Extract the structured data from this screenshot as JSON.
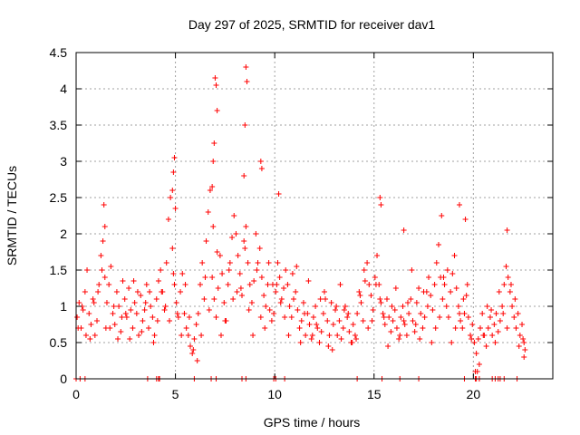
{
  "chart_data": {
    "type": "scatter",
    "title": "Day 297 of 2025, SRMTID for receiver dav1",
    "xlabel": "GPS time / hours",
    "ylabel": "SRMTID / TECUs",
    "xlim": [
      0,
      24
    ],
    "ylim": [
      0,
      4.5
    ],
    "xticks": [
      0,
      5,
      10,
      15,
      20
    ],
    "yticks": [
      0,
      0.5,
      1,
      1.5,
      2,
      2.5,
      3,
      3.5,
      4,
      4.5
    ],
    "ytick_labels": [
      "0",
      "0.5",
      "1",
      "1.5",
      "2",
      "2.5",
      "3",
      "3.5",
      "4",
      "4.5"
    ],
    "grid": true,
    "marker": "+",
    "color": "#ff0000",
    "series": [
      {
        "name": "SRMTID",
        "x": [
          0.05,
          0.15,
          0.25,
          0.35,
          0.45,
          0.55,
          0.65,
          0.75,
          0.85,
          0.95,
          1.05,
          1.15,
          1.25,
          1.35,
          1.45,
          1.55,
          1.65,
          1.75,
          1.85,
          1.95,
          2.05,
          2.15,
          2.25,
          2.35,
          2.45,
          2.55,
          2.65,
          2.75,
          2.85,
          2.95,
          3.05,
          3.15,
          3.25,
          3.35,
          3.45,
          3.55,
          3.65,
          3.75,
          3.85,
          3.95,
          4.05,
          4.15,
          4.25,
          4.35,
          4.45,
          4.55,
          4.65,
          4.75,
          4.85,
          4.95,
          5.05,
          5.15,
          5.25,
          5.35,
          5.45,
          5.55,
          5.65,
          5.75,
          5.85,
          5.95,
          6.05,
          6.15,
          6.25,
          6.35,
          6.45,
          6.55,
          6.65,
          6.75,
          6.85,
          6.95,
          7.05,
          7.15,
          7.25,
          7.35,
          7.45,
          7.55,
          7.65,
          7.75,
          7.85,
          7.95,
          8.05,
          8.15,
          8.25,
          8.35,
          8.45,
          8.55,
          8.65,
          8.75,
          8.85,
          8.95,
          9.05,
          9.15,
          9.25,
          9.35,
          9.45,
          9.55,
          9.65,
          9.75,
          9.85,
          9.95,
          10.05,
          10.15,
          10.25,
          10.35,
          10.45,
          10.55,
          10.65,
          10.75,
          10.85,
          10.95,
          11.05,
          11.15,
          11.25,
          11.35,
          11.45,
          11.55,
          11.65,
          11.75,
          11.85,
          11.95,
          12.05,
          12.15,
          12.25,
          12.35,
          12.45,
          12.55,
          12.65,
          12.75,
          12.85,
          12.95,
          13.05,
          13.15,
          13.25,
          13.35,
          13.45,
          13.55,
          13.65,
          13.75,
          13.85,
          13.95,
          14.05,
          14.15,
          14.25,
          14.35,
          14.45,
          14.55,
          14.65,
          14.75,
          14.85,
          14.95,
          15.05,
          15.15,
          15.25,
          15.35,
          15.45,
          15.55,
          15.65,
          15.75,
          15.85,
          15.95,
          16.05,
          16.15,
          16.25,
          16.35,
          16.45,
          16.55,
          16.65,
          16.75,
          16.85,
          16.95,
          17.05,
          17.15,
          17.25,
          17.35,
          17.45,
          17.55,
          17.65,
          17.75,
          17.85,
          17.95,
          18.05,
          18.15,
          18.25,
          18.35,
          18.45,
          18.55,
          18.65,
          18.75,
          18.85,
          18.95,
          19.05,
          19.15,
          19.25,
          19.35,
          19.45,
          19.55,
          19.65,
          19.75,
          19.85,
          19.95,
          20.05,
          20.15,
          20.25,
          20.35,
          20.45,
          20.55,
          20.65,
          20.75,
          20.85,
          20.95,
          21.05,
          21.15,
          21.25,
          21.35,
          21.45,
          21.55,
          21.65,
          21.75,
          21.85,
          21.95,
          22.05,
          22.15,
          22.25,
          22.35,
          22.45,
          22.55,
          0.1,
          0.5,
          0.9,
          1.3,
          1.7,
          2.1,
          2.5,
          2.9,
          3.3,
          3.7,
          4.1,
          4.5,
          4.9,
          5.3,
          5.7,
          6.1,
          6.5,
          6.9,
          7.3,
          7.7,
          8.1,
          8.5,
          8.9,
          9.3,
          9.7,
          10.1,
          10.5,
          10.9,
          11.3,
          11.7,
          12.1,
          12.5,
          12.9,
          13.3,
          13.7,
          14.1,
          14.5,
          14.9,
          15.3,
          15.7,
          16.1,
          16.5,
          16.9,
          17.3,
          17.7,
          18.1,
          18.5,
          18.9,
          19.3,
          19.7,
          20.1,
          20.5,
          20.9,
          21.3,
          21.7,
          22.1,
          22.5,
          0.3,
          0.7,
          1.1,
          1.5,
          1.9,
          2.3,
          2.7,
          3.1,
          3.5,
          3.9,
          4.3,
          4.7,
          5.1,
          5.5,
          5.9,
          6.3,
          6.7,
          7.1,
          7.5,
          7.9,
          8.3,
          8.7,
          9.1,
          9.5,
          9.9,
          10.3,
          10.7,
          11.1,
          11.5,
          11.9,
          12.3,
          12.7,
          13.1,
          13.5,
          13.9,
          14.3,
          14.7,
          15.1,
          15.5,
          15.9,
          16.3,
          16.7,
          17.1,
          17.5,
          17.9,
          18.3,
          18.7,
          19.1,
          19.5,
          19.9,
          20.3,
          20.7,
          21.1,
          21.5,
          21.9,
          22.3,
          1.4,
          1.45,
          4.85,
          4.9,
          4.95,
          5.0,
          6.85,
          6.9,
          6.95,
          7.0,
          7.05,
          7.1,
          8.45,
          8.5,
          8.55,
          8.6,
          9.3,
          9.35,
          10.2,
          15.3,
          15.35,
          16.5,
          18.4,
          19.3,
          19.6,
          20.2,
          21.7,
          22.55,
          22.6,
          0.0,
          0.2,
          0.45,
          3.6,
          4.05,
          4.15,
          4.2,
          5.95,
          6.8,
          7.05,
          8.35,
          8.55,
          9.95,
          10.05,
          10.5,
          14.15,
          15.4,
          16.3,
          17.25,
          19.55,
          20.1,
          20.15,
          20.3,
          20.95,
          21.1,
          21.25,
          21.35,
          21.55,
          22.2
        ],
        "y": [
          0.85,
          1.05,
          0.7,
          0.95,
          1.2,
          1.5,
          0.9,
          0.75,
          1.1,
          0.6,
          0.8,
          1.3,
          1.7,
          1.9,
          1.4,
          1.05,
          1.3,
          1.55,
          0.9,
          0.75,
          1.2,
          1.0,
          0.65,
          1.35,
          1.1,
          0.85,
          1.25,
          0.95,
          0.7,
          1.05,
          0.9,
          0.6,
          1.15,
          0.8,
          0.95,
          1.3,
          0.7,
          1.0,
          0.85,
          0.6,
          1.1,
          1.35,
          1.5,
          1.2,
          0.95,
          1.6,
          2.2,
          2.5,
          1.8,
          1.3,
          1.05,
          0.85,
          1.2,
          1.45,
          0.9,
          0.7,
          0.6,
          0.45,
          0.35,
          0.55,
          0.75,
          0.9,
          1.3,
          1.6,
          1.1,
          1.9,
          2.3,
          2.6,
          1.4,
          1.1,
          0.85,
          1.25,
          1.7,
          1.45,
          1.05,
          0.8,
          1.3,
          1.6,
          1.95,
          2.25,
          2.0,
          1.7,
          1.45,
          1.15,
          1.9,
          2.1,
          1.6,
          1.3,
          1.05,
          1.35,
          2.0,
          1.6,
          1.8,
          1.4,
          1.15,
          1.0,
          1.3,
          0.95,
          0.8,
          0.9,
          1.2,
          1.6,
          1.4,
          1.1,
          1.25,
          1.5,
          1.3,
          1.0,
          0.85,
          1.1,
          1.2,
          0.95,
          0.7,
          0.8,
          1.05,
          0.6,
          0.9,
          0.75,
          0.55,
          0.85,
          1.0,
          0.7,
          0.5,
          0.65,
          0.9,
          1.1,
          0.8,
          0.6,
          1.05,
          0.75,
          0.95,
          0.6,
          0.8,
          0.55,
          0.7,
          1.0,
          0.85,
          0.65,
          0.5,
          0.75,
          0.6,
          0.9,
          1.2,
          1.05,
          0.8,
          1.35,
          1.6,
          1.3,
          1.15,
          0.95,
          1.4,
          1.7,
          1.3,
          1.05,
          0.9,
          0.75,
          1.1,
          0.85,
          0.65,
          0.8,
          0.95,
          0.7,
          0.55,
          0.85,
          1.0,
          0.75,
          0.6,
          0.9,
          1.1,
          0.8,
          0.65,
          1.05,
          1.25,
          0.9,
          0.7,
          0.85,
          1.2,
          1.4,
          1.15,
          0.95,
          1.3,
          1.6,
          1.85,
          1.4,
          1.1,
          1.3,
          1.0,
          0.85,
          1.2,
          1.45,
          1.7,
          1.25,
          1.0,
          0.8,
          0.7,
          0.9,
          1.15,
          0.85,
          0.6,
          0.75,
          0.5,
          0.35,
          0.55,
          0.7,
          0.9,
          0.6,
          0.45,
          0.7,
          0.85,
          0.6,
          0.75,
          0.9,
          0.65,
          0.8,
          1.0,
          1.3,
          1.55,
          1.4,
          1.2,
          1.0,
          0.85,
          0.7,
          0.9,
          0.6,
          0.75,
          0.5,
          0.7,
          0.6,
          1.05,
          1.5,
          0.7,
          0.55,
          0.9,
          1.35,
          0.65,
          1.2,
          0.8,
          1.0,
          1.45,
          0.6,
          0.85,
          0.25,
          1.4,
          2.1,
          0.6,
          1.5,
          1.2,
          1.8,
          0.6,
          0.85,
          1.6,
          1.3,
          0.85,
          1.45,
          0.5,
          1.35,
          0.75,
          1.2,
          0.4,
          1.3,
          0.9,
          0.55,
          1.5,
          0.8,
          1.1,
          0.45,
          1.25,
          0.8,
          1.5,
          0.55,
          1.0,
          0.7,
          1.4,
          0.5,
          0.9,
          1.3,
          0.1,
          0.6,
          0.95,
          1.2,
          0.7,
          1.1,
          0.55,
          1.0,
          0.55,
          1.2,
          0.7,
          1.0,
          0.85,
          0.55,
          1.2,
          1.05,
          0.5,
          1.2,
          0.8,
          0.9,
          1.3,
          0.4,
          0.6,
          0.95,
          1.75,
          0.8,
          1.1,
          1.25,
          0.95,
          1.5,
          0.7,
          1.3,
          1.05,
          0.6,
          1.55,
          0.9,
          0.6,
          1.1,
          0.45,
          1.0,
          0.95,
          0.5,
          1.15,
          0.7,
          1.3,
          0.85,
          1.0,
          0.6,
          1.05,
          0.75,
          1.2,
          0.5,
          0.85,
          1.5,
          0.7,
          1.1,
          0.55,
          0.2,
          1.0,
          0.5,
          0.9,
          1.3,
          0.45,
          2.4,
          2.1,
          2.6,
          2.85,
          3.05,
          2.35,
          2.65,
          3.0,
          3.25,
          4.15,
          4.05,
          3.7,
          2.8,
          3.5,
          4.3,
          4.1,
          3.0,
          2.9,
          2.55,
          2.5,
          2.4,
          2.05,
          2.25,
          2.4,
          2.2,
          0.1,
          2.05,
          0.3,
          0.4,
          0.0,
          0.0,
          0.0,
          0.0,
          0.0,
          0.0,
          0.0,
          0.0,
          0.0,
          0.0,
          0.0,
          0.0,
          0.0,
          0.0,
          0.0,
          0.0,
          0.0,
          0.0,
          0.0,
          0.0,
          0.0,
          0.0,
          0.0,
          0.0,
          0.0,
          0.0,
          0.0,
          0.0,
          0.0
        ]
      }
    ]
  }
}
